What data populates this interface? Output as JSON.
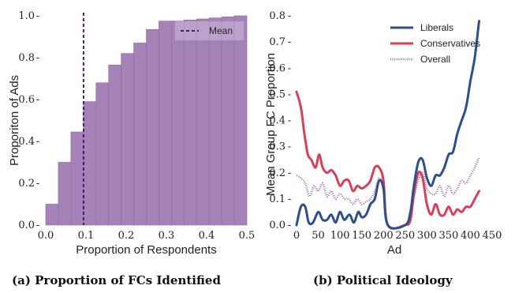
{
  "chart_data": [
    {
      "type": "bar",
      "xlabel": "Proportion of Respondents",
      "ylabel": "Proporiton of Ads",
      "caption": "(a) Proportion of FCs Identified",
      "xlim": [
        0.0,
        0.5
      ],
      "ylim": [
        0.0,
        1.0
      ],
      "xticks": [
        "0.0",
        "0.1",
        "0.2",
        "0.3",
        "0.4",
        "0.5"
      ],
      "yticks": [
        "0.0",
        "0.2",
        "0.4",
        "0.6",
        "0.8",
        "1.0"
      ],
      "bin_width": 0.03125,
      "bin_starts": [
        0.0,
        0.03125,
        0.0625,
        0.09375,
        0.125,
        0.15625,
        0.1875,
        0.21875,
        0.25,
        0.28125,
        0.3125,
        0.34375,
        0.375,
        0.40625,
        0.4375,
        0.46875
      ],
      "values": [
        0.1,
        0.3,
        0.445,
        0.59,
        0.68,
        0.765,
        0.82,
        0.87,
        0.935,
        0.975,
        0.975,
        0.98,
        0.985,
        0.99,
        0.995,
        1.0
      ],
      "bar_color": "#a583b8",
      "mean": 0.094,
      "mean_label": "Mean",
      "mean_color": "#4a1a6b",
      "grid": false,
      "legend_position": "top-right"
    },
    {
      "type": "line",
      "xlabel": "Ad",
      "ylabel": "Mean Group FC Proportion",
      "caption": "(b) Political Ideology",
      "xlim": [
        0,
        450
      ],
      "ylim": [
        0.0,
        0.8
      ],
      "xticks": [
        "0",
        "50",
        "100",
        "150",
        "200",
        "250",
        "300",
        "350",
        "400",
        "450"
      ],
      "yticks": [
        "0.0",
        "0.1",
        "0.2",
        "0.3",
        "0.4",
        "0.5",
        "0.6",
        "0.7",
        "0.8"
      ],
      "grid": false,
      "legend_position": "top-right",
      "series": [
        {
          "name": "Liberals",
          "color": "#2e4f8c",
          "style": "solid",
          "points": [
            [
              0,
              0.0
            ],
            [
              10,
              0.07
            ],
            [
              20,
              0.07
            ],
            [
              28,
              0.01
            ],
            [
              38,
              0.01
            ],
            [
              50,
              0.05
            ],
            [
              60,
              0.02
            ],
            [
              70,
              0.02
            ],
            [
              80,
              0.04
            ],
            [
              90,
              0.01
            ],
            [
              100,
              0.05
            ],
            [
              110,
              0.02
            ],
            [
              122,
              0.04
            ],
            [
              132,
              0.01
            ],
            [
              142,
              0.05
            ],
            [
              150,
              0.03
            ],
            [
              160,
              0.04
            ],
            [
              170,
              0.08
            ],
            [
              180,
              0.1
            ],
            [
              190,
              0.17
            ],
            [
              200,
              0.14
            ],
            [
              210,
              0.0
            ],
            [
              250,
              0.0
            ],
            [
              262,
              0.05
            ],
            [
              270,
              0.15
            ],
            [
              280,
              0.24
            ],
            [
              290,
              0.25
            ],
            [
              300,
              0.18
            ],
            [
              310,
              0.15
            ],
            [
              320,
              0.19
            ],
            [
              330,
              0.19
            ],
            [
              340,
              0.22
            ],
            [
              350,
              0.27
            ],
            [
              360,
              0.28
            ],
            [
              370,
              0.35
            ],
            [
              380,
              0.4
            ],
            [
              390,
              0.45
            ],
            [
              400,
              0.55
            ],
            [
              410,
              0.64
            ],
            [
              420,
              0.78
            ]
          ]
        },
        {
          "name": "Conservatives",
          "color": "#d6405a",
          "style": "solid",
          "points": [
            [
              0,
              0.51
            ],
            [
              10,
              0.45
            ],
            [
              18,
              0.35
            ],
            [
              26,
              0.27
            ],
            [
              34,
              0.25
            ],
            [
              44,
              0.22
            ],
            [
              52,
              0.27
            ],
            [
              60,
              0.22
            ],
            [
              70,
              0.2
            ],
            [
              80,
              0.21
            ],
            [
              90,
              0.19
            ],
            [
              100,
              0.15
            ],
            [
              110,
              0.17
            ],
            [
              120,
              0.17
            ],
            [
              130,
              0.13
            ],
            [
              140,
              0.15
            ],
            [
              150,
              0.14
            ],
            [
              160,
              0.15
            ],
            [
              170,
              0.17
            ],
            [
              180,
              0.22
            ],
            [
              190,
              0.22
            ],
            [
              200,
              0.17
            ],
            [
              210,
              0.0
            ],
            [
              250,
              0.0
            ],
            [
              262,
              0.02
            ],
            [
              270,
              0.12
            ],
            [
              280,
              0.2
            ],
            [
              290,
              0.18
            ],
            [
              300,
              0.08
            ],
            [
              310,
              0.04
            ],
            [
              320,
              0.08
            ],
            [
              330,
              0.04
            ],
            [
              340,
              0.04
            ],
            [
              350,
              0.07
            ],
            [
              360,
              0.04
            ],
            [
              370,
              0.06
            ],
            [
              380,
              0.05
            ],
            [
              390,
              0.07
            ],
            [
              400,
              0.07
            ],
            [
              410,
              0.1
            ],
            [
              420,
              0.13
            ]
          ]
        },
        {
          "name": "Overall",
          "color": "#9a6fb0",
          "style": "dotted",
          "points": [
            [
              0,
              0.19
            ],
            [
              10,
              0.18
            ],
            [
              20,
              0.16
            ],
            [
              30,
              0.11
            ],
            [
              40,
              0.15
            ],
            [
              50,
              0.13
            ],
            [
              60,
              0.16
            ],
            [
              70,
              0.11
            ],
            [
              80,
              0.13
            ],
            [
              90,
              0.1
            ],
            [
              100,
              0.12
            ],
            [
              110,
              0.1
            ],
            [
              120,
              0.1
            ],
            [
              130,
              0.08
            ],
            [
              140,
              0.1
            ],
            [
              150,
              0.08
            ],
            [
              160,
              0.09
            ],
            [
              170,
              0.1
            ],
            [
              180,
              0.13
            ],
            [
              190,
              0.18
            ],
            [
              200,
              0.14
            ],
            [
              210,
              0.0
            ],
            [
              250,
              0.0
            ],
            [
              262,
              0.03
            ],
            [
              270,
              0.1
            ],
            [
              280,
              0.17
            ],
            [
              290,
              0.2
            ],
            [
              300,
              0.14
            ],
            [
              310,
              0.12
            ],
            [
              320,
              0.12
            ],
            [
              330,
              0.15
            ],
            [
              340,
              0.11
            ],
            [
              350,
              0.15
            ],
            [
              360,
              0.12
            ],
            [
              370,
              0.14
            ],
            [
              380,
              0.17
            ],
            [
              390,
              0.16
            ],
            [
              400,
              0.19
            ],
            [
              410,
              0.22
            ],
            [
              420,
              0.26
            ]
          ]
        }
      ]
    }
  ]
}
